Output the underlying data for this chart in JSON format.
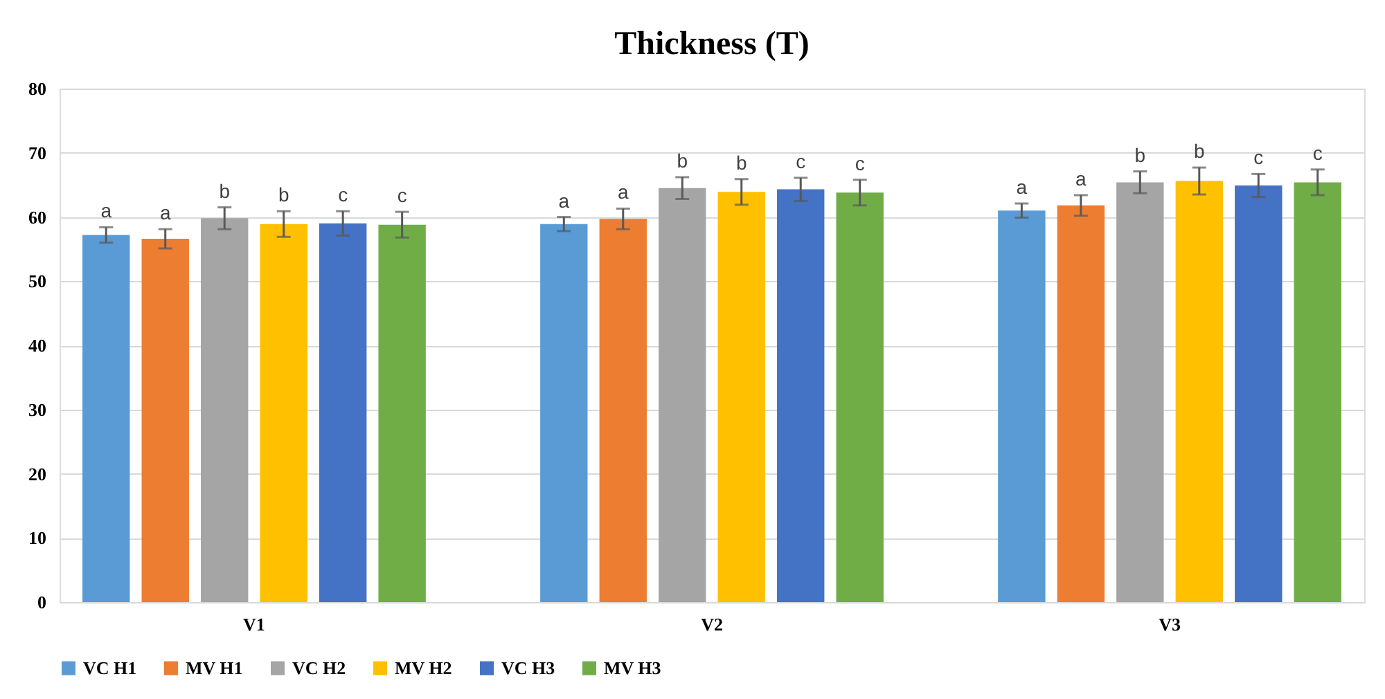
{
  "chart_data": {
    "type": "bar",
    "title": "Thickness (T)",
    "categories": [
      "V1",
      "V2",
      "V3"
    ],
    "ylim": [
      0,
      80
    ],
    "yticks": [
      0,
      10,
      20,
      30,
      40,
      50,
      60,
      70,
      80
    ],
    "grid": "y",
    "legend": "bottom",
    "series": [
      {
        "name": "VC H1",
        "color": "#5b9bd5",
        "values": [
          57.2,
          58.9,
          61.0
        ],
        "errors": [
          1.2,
          1.1,
          1.1
        ],
        "value_labels": [
          "a",
          "a",
          "a"
        ]
      },
      {
        "name": "MV H1",
        "color": "#ed7d31",
        "values": [
          56.6,
          59.7,
          61.8
        ],
        "errors": [
          1.5,
          1.6,
          1.6
        ],
        "value_labels": [
          "a",
          "a",
          "a"
        ]
      },
      {
        "name": "VC H2",
        "color": "#a5a5a5",
        "values": [
          59.8,
          64.5,
          65.4
        ],
        "errors": [
          1.7,
          1.7,
          1.7
        ],
        "value_labels": [
          "b",
          "b",
          "b"
        ]
      },
      {
        "name": "MV H2",
        "color": "#ffc000",
        "values": [
          58.9,
          63.9,
          65.6
        ],
        "errors": [
          2.0,
          2.0,
          2.1
        ],
        "value_labels": [
          "b",
          "b",
          "b"
        ]
      },
      {
        "name": "VC H3",
        "color": "#4472c4",
        "values": [
          59.0,
          64.3,
          64.9
        ],
        "errors": [
          1.9,
          1.8,
          1.8
        ],
        "value_labels": [
          "c",
          "c",
          "c"
        ]
      },
      {
        "name": "MV H3",
        "color": "#70ad47",
        "values": [
          58.8,
          63.8,
          65.4
        ],
        "errors": [
          2.0,
          2.0,
          2.0
        ],
        "value_labels": [
          "c",
          "c",
          "c"
        ]
      }
    ]
  }
}
